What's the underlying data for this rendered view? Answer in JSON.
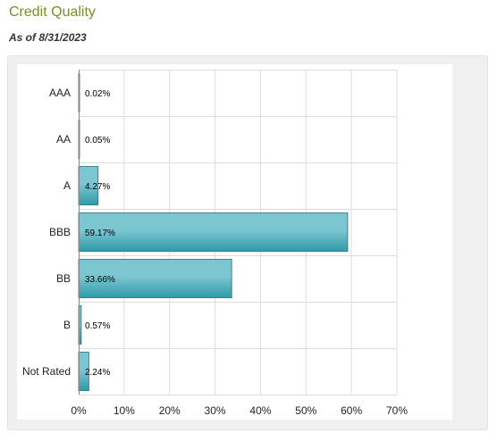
{
  "header": {
    "title": "Credit Quality",
    "as_of": "As of 8/31/2023"
  },
  "colors": {
    "title": "#7a8d2a",
    "bar_light": "#7cc6d1",
    "bar_dark": "#2f9aa8",
    "bar_border": "#1f6f7a",
    "grid": "#dddddd"
  },
  "chart_data": {
    "type": "bar",
    "orientation": "horizontal",
    "categories": [
      "AAA",
      "AA",
      "A",
      "BBB",
      "BB",
      "B",
      "Not Rated"
    ],
    "values": [
      0.02,
      0.05,
      4.27,
      59.17,
      33.66,
      0.57,
      2.24
    ],
    "data_labels": [
      "0.02%",
      "0.05%",
      "4.27%",
      "59.17%",
      "33.66%",
      "0.57%",
      "2.24%"
    ],
    "xlim": [
      0,
      70
    ],
    "xticks": [
      0,
      10,
      20,
      30,
      40,
      50,
      60,
      70
    ],
    "xtick_labels": [
      "0%",
      "10%",
      "20%",
      "30%",
      "40%",
      "50%",
      "60%",
      "70%"
    ],
    "grid": true,
    "legend": false
  }
}
